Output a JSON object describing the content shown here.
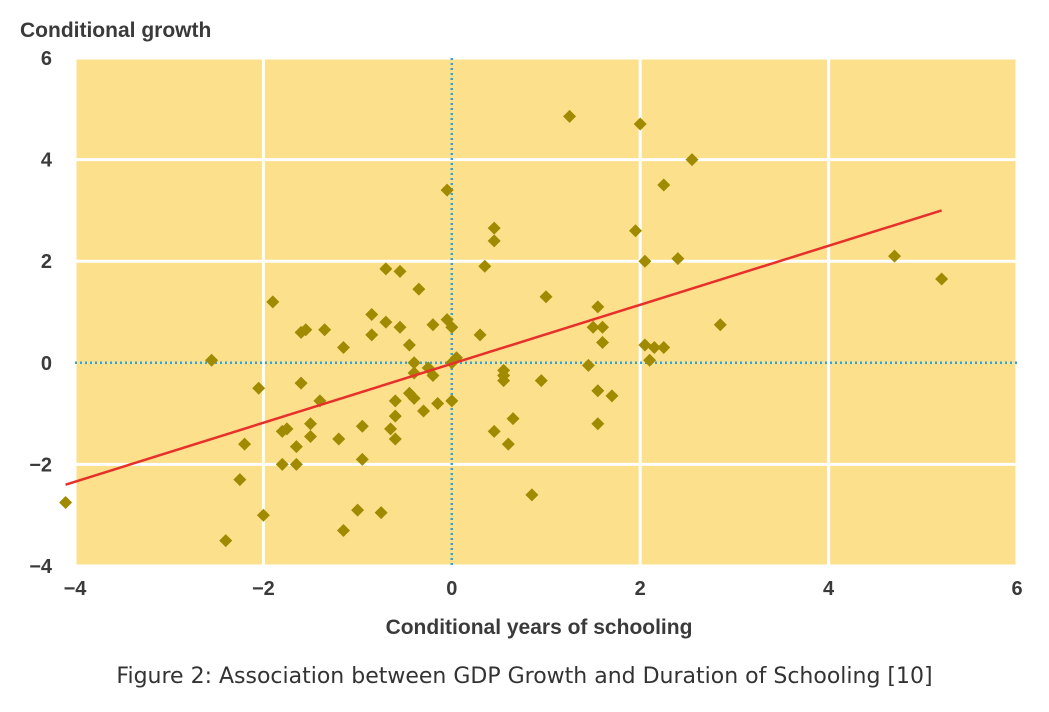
{
  "chart_data": {
    "type": "scatter",
    "title": "",
    "ylabel": "Conditional growth",
    "xlabel": "Conditional years of schooling",
    "xlim": [
      -4,
      6
    ],
    "ylim": [
      -4,
      6
    ],
    "xticks": [
      -4,
      -2,
      0,
      2,
      4,
      6
    ],
    "yticks": [
      -4,
      -2,
      0,
      2,
      4,
      6
    ],
    "xtick_labels": [
      "−4",
      "−2",
      "0",
      "2",
      "4",
      "6"
    ],
    "ytick_labels": [
      "−4",
      "−2",
      "0",
      "2",
      "4",
      "6"
    ],
    "grid": true,
    "colors": {
      "background": "#fde08c",
      "grid": "#ffffff",
      "points": "#a08a00",
      "fit_line": "#e8302a",
      "zero_lines": "#2ea3e0"
    },
    "fit_line": {
      "x": [
        -4.1,
        5.2
      ],
      "y": [
        -2.4,
        3.0
      ]
    },
    "points": [
      {
        "x": -4.1,
        "y": -2.75
      },
      {
        "x": -2.55,
        "y": 0.05
      },
      {
        "x": -2.4,
        "y": -3.5
      },
      {
        "x": -2.25,
        "y": -2.3
      },
      {
        "x": -2.2,
        "y": -1.6
      },
      {
        "x": -2.05,
        "y": -0.5
      },
      {
        "x": -2.0,
        "y": -3.0
      },
      {
        "x": -1.9,
        "y": 1.2
      },
      {
        "x": -1.8,
        "y": -1.35
      },
      {
        "x": -1.75,
        "y": -1.3
      },
      {
        "x": -1.8,
        "y": -2.0
      },
      {
        "x": -1.65,
        "y": -1.65
      },
      {
        "x": -1.65,
        "y": -2.0
      },
      {
        "x": -1.6,
        "y": -0.4
      },
      {
        "x": -1.6,
        "y": 0.6
      },
      {
        "x": -1.55,
        "y": 0.65
      },
      {
        "x": -1.5,
        "y": -1.45
      },
      {
        "x": -1.5,
        "y": -1.2
      },
      {
        "x": -1.35,
        "y": 0.65
      },
      {
        "x": -1.4,
        "y": -0.75
      },
      {
        "x": -1.2,
        "y": -1.5
      },
      {
        "x": -1.15,
        "y": 0.3
      },
      {
        "x": -1.15,
        "y": -3.3
      },
      {
        "x": -1.0,
        "y": -2.9
      },
      {
        "x": -0.95,
        "y": -1.25
      },
      {
        "x": -0.95,
        "y": -1.9
      },
      {
        "x": -0.85,
        "y": 0.95
      },
      {
        "x": -0.85,
        "y": 0.55
      },
      {
        "x": -0.75,
        "y": -2.95
      },
      {
        "x": -0.7,
        "y": 1.85
      },
      {
        "x": -0.7,
        "y": 0.8
      },
      {
        "x": -0.65,
        "y": -1.3
      },
      {
        "x": -0.6,
        "y": -1.5
      },
      {
        "x": -0.6,
        "y": -1.05
      },
      {
        "x": -0.6,
        "y": -0.75
      },
      {
        "x": -0.55,
        "y": 1.8
      },
      {
        "x": -0.55,
        "y": 0.7
      },
      {
        "x": -0.45,
        "y": 0.35
      },
      {
        "x": -0.45,
        "y": -0.6
      },
      {
        "x": -0.4,
        "y": 0.0
      },
      {
        "x": -0.4,
        "y": -0.2
      },
      {
        "x": -0.4,
        "y": -0.7
      },
      {
        "x": -0.35,
        "y": 1.45
      },
      {
        "x": -0.3,
        "y": -0.95
      },
      {
        "x": -0.25,
        "y": -0.1
      },
      {
        "x": -0.2,
        "y": 0.75
      },
      {
        "x": -0.2,
        "y": -0.25
      },
      {
        "x": -0.15,
        "y": -0.8
      },
      {
        "x": -0.05,
        "y": 3.4
      },
      {
        "x": -0.05,
        "y": 0.85
      },
      {
        "x": 0.0,
        "y": 0.7
      },
      {
        "x": 0.0,
        "y": 0.0
      },
      {
        "x": 0.0,
        "y": -0.75
      },
      {
        "x": 0.05,
        "y": 0.1
      },
      {
        "x": 0.3,
        "y": 0.55
      },
      {
        "x": 0.35,
        "y": 1.9
      },
      {
        "x": 0.45,
        "y": 2.65
      },
      {
        "x": 0.45,
        "y": 2.4
      },
      {
        "x": 0.45,
        "y": -1.35
      },
      {
        "x": 0.55,
        "y": -0.15
      },
      {
        "x": 0.55,
        "y": -0.25
      },
      {
        "x": 0.55,
        "y": -0.35
      },
      {
        "x": 0.6,
        "y": -1.6
      },
      {
        "x": 0.65,
        "y": -1.1
      },
      {
        "x": 0.85,
        "y": -2.6
      },
      {
        "x": 0.95,
        "y": -0.35
      },
      {
        "x": 1.0,
        "y": 1.3
      },
      {
        "x": 1.25,
        "y": 4.85
      },
      {
        "x": 1.45,
        "y": -0.05
      },
      {
        "x": 1.5,
        "y": 0.7
      },
      {
        "x": 1.55,
        "y": 1.1
      },
      {
        "x": 1.55,
        "y": -0.55
      },
      {
        "x": 1.55,
        "y": -1.2
      },
      {
        "x": 1.6,
        "y": 0.4
      },
      {
        "x": 1.6,
        "y": 0.7
      },
      {
        "x": 1.7,
        "y": -0.65
      },
      {
        "x": 1.95,
        "y": 2.6
      },
      {
        "x": 2.0,
        "y": 4.7
      },
      {
        "x": 2.05,
        "y": 2.0
      },
      {
        "x": 2.05,
        "y": 0.35
      },
      {
        "x": 2.1,
        "y": 0.05
      },
      {
        "x": 2.15,
        "y": 0.3
      },
      {
        "x": 2.25,
        "y": 0.3
      },
      {
        "x": 2.25,
        "y": 3.5
      },
      {
        "x": 2.4,
        "y": 2.05
      },
      {
        "x": 2.55,
        "y": 4.0
      },
      {
        "x": 2.85,
        "y": 0.75
      },
      {
        "x": 4.7,
        "y": 2.1
      },
      {
        "x": 5.2,
        "y": 1.65
      }
    ]
  },
  "caption": "Figure 2: Association between GDP Growth and Duration of Schooling [10]"
}
